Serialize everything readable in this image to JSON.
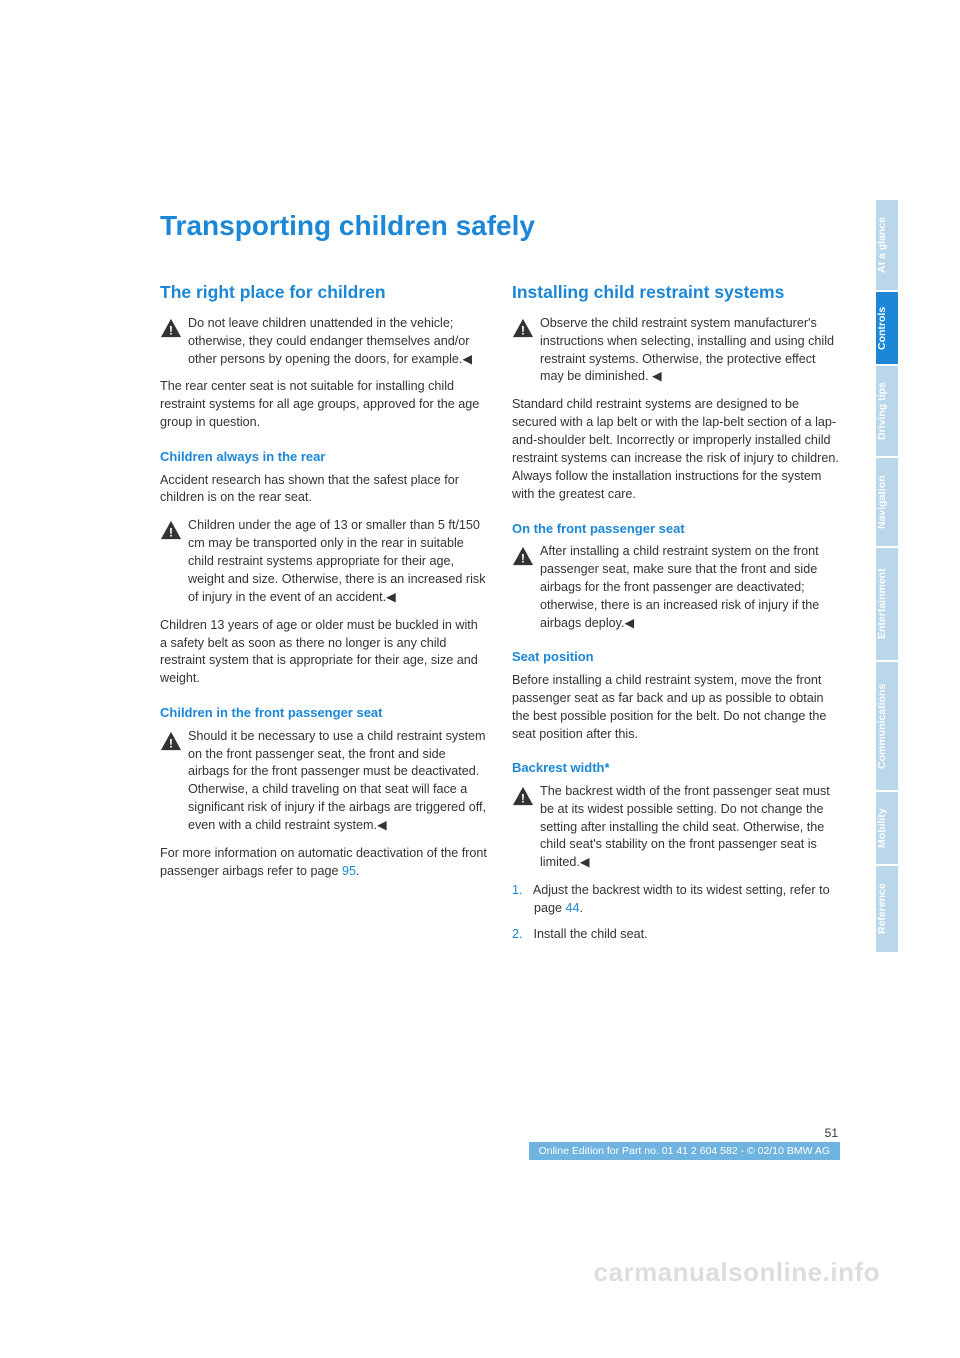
{
  "colors": {
    "primary": "#1b87d6",
    "text": "#333333",
    "active_tab": "#1b87d6",
    "inactive_tab": "#b9d6ea",
    "footerbar": "#6fb4e0",
    "watermark": "#dddddd"
  },
  "title": "Transporting children safely",
  "left": {
    "h2": "The right place for children",
    "w1": "Do not leave children unattended in the vehicle; otherwise, they could endanger themselves and/or other persons by opening the doors, for example.◀",
    "p1": "The rear center seat is not suitable for installing child restraint systems for all age groups, approved for the age group in question.",
    "h3a": "Children always in the rear",
    "p2": "Accident research has shown that the safest place for children is on the rear seat.",
    "w2": "Children under the age of 13 or smaller than 5 ft/150 cm may be transported only in the rear in suitable child restraint systems appropriate for their age, weight and size. Otherwise, there is an increased risk of injury in the event of an accident.◀",
    "p3": "Children 13 years of age or older must be buckled in with a safety belt as soon as there no longer is any child restraint system that is appropriate for their age, size and weight.",
    "h3b": "Children in the front passenger seat",
    "w3": "Should it be necessary to use a child restraint system on the front passenger seat, the front and side airbags for the front passenger must be deactivated. Otherwise, a child traveling on that seat will face a significant risk of injury if the airbags are triggered off, even with a child restraint system.◀",
    "p4a": "For more information on automatic deactivation of the front passenger airbags refer to page ",
    "p4link": "95",
    "p4b": "."
  },
  "right": {
    "h2": "Installing child restraint systems",
    "w1": "Observe the child restraint system manufacturer's instructions when selecting, installing and using child restraint systems. Otherwise, the protective effect may be diminished. ◀",
    "p1": "Standard child restraint systems are designed to be secured with a lap belt or with the lap-belt section of a lap-and-shoulder belt. Incorrectly or improperly installed child restraint systems can increase the risk of injury to children. Always follow the installation instructions for the system with the greatest care.",
    "h3a": "On the front passenger seat",
    "w2": "After installing a child restraint system on the front passenger seat, make sure that the front and side airbags for the front passenger are deactivated; otherwise, there is an increased risk of injury if the airbags deploy.◀",
    "h3b": "Seat position",
    "p2": "Before installing a child restraint system, move the front passenger seat as far back and up as possible to obtain the best possible position for the belt. Do not change the seat position after this.",
    "h3c": "Backrest width*",
    "w3": "The backrest width of the front passenger seat must be at its widest possible setting. Do not change the setting after installing the child seat. Otherwise, the child seat's stability on the front passenger seat is limited.◀",
    "li1a": "Adjust the backrest width to its widest setting, refer to page ",
    "li1link": "44",
    "li1b": ".",
    "li2": "Install the child seat."
  },
  "tabs": [
    {
      "label": "At a glance",
      "active": false
    },
    {
      "label": "Controls",
      "active": true
    },
    {
      "label": "Driving tips",
      "active": false
    },
    {
      "label": "Navigation",
      "active": false
    },
    {
      "label": "Entertainment",
      "active": false
    },
    {
      "label": "Communications",
      "active": false
    },
    {
      "label": "Mobility",
      "active": false
    },
    {
      "label": "Reference",
      "active": false
    }
  ],
  "tab_heights": [
    90,
    72,
    90,
    88,
    112,
    128,
    72,
    86
  ],
  "footer": {
    "page": "51",
    "line": "Online Edition for Part no. 01 41 2 604 582 - © 02/10 BMW AG"
  },
  "watermark": "carmanualsonline.info",
  "list_numbers": [
    "1.",
    "2."
  ]
}
